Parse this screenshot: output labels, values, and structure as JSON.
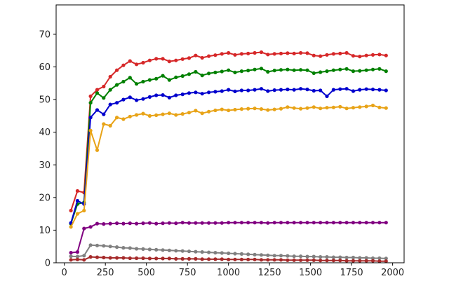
{
  "chart_data": {
    "type": "line",
    "title": "",
    "xlabel": "",
    "ylabel": "",
    "xlim": [
      -50,
      2070
    ],
    "ylim": [
      0,
      79
    ],
    "x_ticks": [
      0,
      250,
      500,
      750,
      1000,
      1250,
      1500,
      1750,
      2000
    ],
    "y_ticks": [
      0,
      10,
      20,
      30,
      40,
      50,
      60,
      70
    ],
    "grid": false,
    "legend": "none",
    "x": [
      40,
      80,
      120,
      160,
      200,
      240,
      280,
      320,
      360,
      400,
      440,
      480,
      520,
      560,
      600,
      640,
      680,
      720,
      760,
      800,
      840,
      880,
      920,
      960,
      1000,
      1040,
      1080,
      1120,
      1160,
      1200,
      1240,
      1280,
      1320,
      1360,
      1400,
      1440,
      1480,
      1520,
      1560,
      1600,
      1640,
      1680,
      1720,
      1760,
      1800,
      1840,
      1880,
      1920,
      1960
    ],
    "series": [
      {
        "color": "#d62728",
        "values": [
          16,
          22,
          21.5,
          51,
          53,
          54,
          57,
          59,
          60.5,
          61.8,
          60.8,
          61.3,
          62,
          62.5,
          62.5,
          61.7,
          62,
          62.4,
          62.7,
          63.5,
          62.8,
          63.3,
          63.6,
          64,
          64.3,
          63.7,
          64,
          64.1,
          64.3,
          64.5,
          63.8,
          64,
          64.1,
          64.2,
          64.1,
          64.3,
          64.2,
          63.5,
          63.3,
          63.7,
          64,
          64.1,
          64.3,
          63.4,
          63.2,
          63.5,
          63.7,
          63.8,
          63.5
        ]
      },
      {
        "color": "#008000",
        "values": [
          12,
          18,
          18.5,
          49,
          52,
          50.5,
          53,
          54.5,
          55.5,
          56.7,
          54.8,
          55.5,
          56,
          56.4,
          57.3,
          56,
          56.8,
          57.2,
          57.8,
          58.5,
          57.4,
          58,
          58.3,
          58.6,
          59,
          58.3,
          58.7,
          58.9,
          59.2,
          59.5,
          58.5,
          58.9,
          59.1,
          59.2,
          59,
          59.1,
          59,
          58.1,
          58.4,
          58.7,
          59,
          59.2,
          59.4,
          58.7,
          58.8,
          59,
          59.2,
          59.4,
          58.7
        ]
      },
      {
        "color": "#0000cd",
        "values": [
          12.2,
          19,
          18,
          44.5,
          46.8,
          45.5,
          48.5,
          49,
          50,
          50.7,
          49.8,
          50.2,
          50.8,
          51.3,
          51.4,
          50.6,
          51.3,
          51.6,
          52,
          52.2,
          51.8,
          52.2,
          52.4,
          52.6,
          53,
          52.5,
          52.8,
          52.8,
          53,
          53.3,
          52.6,
          52.9,
          53,
          53.1,
          53,
          53.3,
          53.1,
          52.7,
          52.8,
          51,
          53,
          53.2,
          53.3,
          52.6,
          53,
          53.2,
          53.1,
          53,
          52.8
        ]
      },
      {
        "color": "#e8a317",
        "values": [
          11,
          15,
          16,
          40.5,
          34.5,
          42.5,
          42,
          44.5,
          44,
          44.8,
          45.3,
          45.7,
          45,
          45.2,
          45.5,
          45.8,
          45.3,
          45.6,
          46,
          46.6,
          45.8,
          46.3,
          46.7,
          47,
          46.7,
          46.9,
          47.1,
          47.2,
          47.3,
          47.1,
          46.8,
          47,
          47.2,
          47.7,
          47.4,
          47.2,
          47.4,
          47.7,
          47.3,
          47.5,
          47.6,
          47.8,
          47.3,
          47.5,
          47.7,
          47.9,
          48.2,
          47.6,
          47.4
        ]
      },
      {
        "color": "#800080",
        "values": [
          3.1,
          3.3,
          10.5,
          11,
          12,
          11.9,
          12,
          12.1,
          12,
          12.1,
          12,
          12.1,
          12.2,
          12,
          12.1,
          12.2,
          12.1,
          12.3,
          12.2,
          12.2,
          12.2,
          12.2,
          12.2,
          12.2,
          12.3,
          12.3,
          12.3,
          12.3,
          12.3,
          12.3,
          12.2,
          12.3,
          12.3,
          12.3,
          12.3,
          12.3,
          12.3,
          12.3,
          12.3,
          12.3,
          12.3,
          12.3,
          12.3,
          12.3,
          12.3,
          12.3,
          12.3,
          12.3,
          12.3
        ]
      },
      {
        "color": "#808080",
        "values": [
          2,
          1.9,
          2.2,
          5.4,
          5.3,
          5.2,
          5,
          4.8,
          4.6,
          4.5,
          4.3,
          4.2,
          4.1,
          4,
          3.9,
          3.8,
          3.7,
          3.6,
          3.5,
          3.4,
          3.3,
          3.2,
          3.1,
          3,
          2.9,
          2.8,
          2.7,
          2.6,
          2.5,
          2.4,
          2.3,
          2.2,
          2.2,
          2.1,
          2,
          2,
          1.9,
          1.9,
          1.8,
          1.8,
          1.7,
          1.7,
          1.6,
          1.6,
          1.5,
          1.5,
          1.4,
          1.4,
          1.3
        ]
      },
      {
        "color": "#a52a2a",
        "values": [
          0.9,
          1,
          0.9,
          1.8,
          1.7,
          1.6,
          1.5,
          1.5,
          1.5,
          1.4,
          1.4,
          1.4,
          1.3,
          1.3,
          1.3,
          1.3,
          1.2,
          1.2,
          1.2,
          1.2,
          1.1,
          1.1,
          1.1,
          1.1,
          1,
          1,
          1,
          1,
          1,
          0.9,
          0.9,
          0.9,
          0.9,
          0.8,
          0.8,
          0.8,
          0.8,
          0.8,
          0.7,
          0.7,
          0.7,
          0.7,
          0.6,
          0.6,
          0.6,
          0.6,
          0.6,
          0.5,
          0.5
        ]
      }
    ]
  }
}
